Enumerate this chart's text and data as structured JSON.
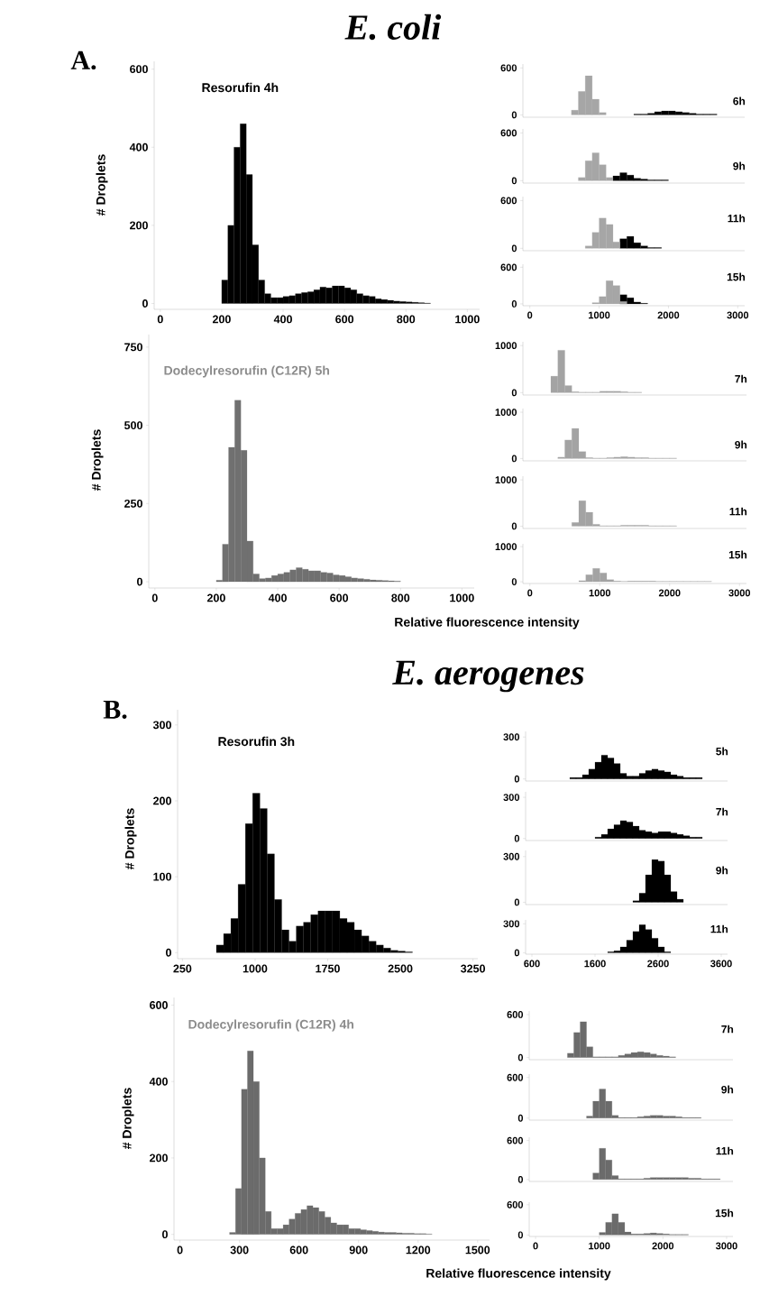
{
  "chart_data": [
    {
      "type": "histogram",
      "title": "E. coli",
      "annotations": [
        "A.",
        "Resorufin 4h"
      ],
      "ylabel": "# Droplets",
      "xlim": [
        -20,
        1040
      ],
      "ylim": [
        -15,
        620
      ],
      "xticks": [
        0,
        200,
        400,
        600,
        800,
        1000
      ],
      "yticks": [
        0,
        200,
        400,
        600
      ],
      "bins": [
        200,
        220,
        240,
        260,
        280,
        300,
        320,
        340,
        360,
        380,
        400,
        420,
        440,
        460,
        480,
        500,
        520,
        540,
        560,
        580,
        600,
        620,
        640,
        660,
        680,
        700,
        720,
        740,
        760,
        780,
        800,
        820,
        840,
        860,
        880
      ],
      "series": [
        {
          "color": "#000000",
          "values": [
            60,
            200,
            400,
            460,
            330,
            150,
            60,
            25,
            15,
            15,
            18,
            20,
            25,
            28,
            30,
            35,
            42,
            40,
            45,
            45,
            40,
            35,
            25,
            20,
            18,
            12,
            10,
            8,
            6,
            5,
            4,
            3,
            2,
            1
          ]
        }
      ]
    },
    {
      "type": "histogram",
      "title": "6h",
      "xlim": [
        -100,
        3100
      ],
      "ylim": [
        -30,
        650
      ],
      "yticks": [
        0,
        600
      ],
      "tick_labels": "y",
      "bins": [
        600,
        700,
        800,
        900,
        1000,
        1100,
        1200,
        1300,
        1400,
        1500,
        1600,
        1700,
        1800,
        1900,
        2000,
        2100,
        2200,
        2300,
        2400,
        2500,
        2600,
        2700
      ],
      "series": [
        {
          "color": "#000000",
          "values": [
            null,
            null,
            null,
            null,
            null,
            null,
            null,
            null,
            null,
            10,
            10,
            20,
            40,
            50,
            50,
            40,
            30,
            20,
            10,
            10,
            10
          ]
        },
        {
          "color": "#a6a6a6",
          "values": [
            60,
            300,
            500,
            200,
            30,
            null,
            null,
            null,
            null,
            null,
            null,
            null,
            null,
            null,
            null,
            null,
            null,
            null,
            null,
            null,
            null
          ]
        }
      ]
    },
    {
      "type": "histogram",
      "title": "9h",
      "xlim": [
        -100,
        3100
      ],
      "ylim": [
        -30,
        650
      ],
      "yticks": [
        0,
        600
      ],
      "tick_labels": "y",
      "bins": [
        600,
        700,
        800,
        900,
        1000,
        1100,
        1200,
        1300,
        1400,
        1500,
        1600,
        1700,
        1800,
        1900,
        2000,
        2100,
        2200,
        2300,
        2400,
        2500,
        2600,
        2700
      ],
      "series": [
        {
          "color": "#000000",
          "values": [
            null,
            null,
            null,
            null,
            null,
            null,
            60,
            100,
            70,
            30,
            20,
            10,
            10,
            10,
            null,
            null,
            null,
            null,
            null,
            null,
            null
          ]
        },
        {
          "color": "#a6a6a6",
          "values": [
            null,
            40,
            250,
            350,
            200,
            40,
            null,
            null,
            null,
            null,
            null,
            null,
            null,
            null,
            null,
            null,
            null,
            null,
            null,
            null,
            null
          ]
        }
      ]
    },
    {
      "type": "histogram",
      "title": "11h",
      "xlim": [
        -100,
        3100
      ],
      "ylim": [
        -30,
        650
      ],
      "yticks": [
        0,
        600
      ],
      "tick_labels": "y",
      "bins": [
        600,
        700,
        800,
        900,
        1000,
        1100,
        1200,
        1300,
        1400,
        1500,
        1600,
        1700,
        1800,
        1900,
        2000,
        2100,
        2200,
        2300,
        2400,
        2500,
        2600,
        2700
      ],
      "series": [
        {
          "color": "#000000",
          "values": [
            null,
            null,
            null,
            null,
            null,
            null,
            null,
            120,
            150,
            70,
            30,
            10,
            10,
            null,
            null,
            null,
            null,
            null,
            null,
            null,
            null
          ]
        },
        {
          "color": "#a6a6a6",
          "values": [
            null,
            null,
            30,
            200,
            380,
            300,
            80,
            null,
            null,
            null,
            null,
            null,
            null,
            null,
            null,
            null,
            null,
            null,
            null,
            null,
            null
          ]
        }
      ]
    },
    {
      "type": "histogram",
      "title": "15h",
      "xlim": [
        -100,
        3100
      ],
      "ylim": [
        -30,
        650
      ],
      "xticks": [
        0,
        1000,
        2000,
        3000
      ],
      "yticks": [
        0,
        600
      ],
      "bins": [
        600,
        700,
        800,
        900,
        1000,
        1100,
        1200,
        1300,
        1400,
        1500,
        1600,
        1700,
        1800,
        1900,
        2000,
        2100,
        2200,
        2300,
        2400,
        2500,
        2600,
        2700
      ],
      "series": [
        {
          "color": "#000000",
          "values": [
            null,
            null,
            null,
            null,
            null,
            null,
            null,
            150,
            100,
            30,
            10,
            null,
            null,
            null,
            null,
            null,
            null,
            null,
            null,
            null,
            null
          ]
        },
        {
          "color": "#a6a6a6",
          "values": [
            null,
            null,
            null,
            20,
            120,
            380,
            300,
            40,
            null,
            null,
            null,
            null,
            null,
            null,
            null,
            null,
            null,
            null,
            null,
            null,
            null
          ]
        }
      ]
    },
    {
      "type": "histogram",
      "annotations": [
        "Dodecylresorufin (C12R) 5h"
      ],
      "xlabel": "Relative fluorescence intensity",
      "ylabel": "# Droplets",
      "xlim": [
        -20,
        1040
      ],
      "ylim": [
        -20,
        790
      ],
      "xticks": [
        0,
        200,
        400,
        600,
        800,
        1000
      ],
      "yticks": [
        0,
        250,
        500,
        750
      ],
      "bins": [
        200,
        220,
        240,
        260,
        280,
        300,
        320,
        340,
        360,
        380,
        400,
        420,
        440,
        460,
        480,
        500,
        520,
        540,
        560,
        580,
        600,
        620,
        640,
        660,
        680,
        700,
        720,
        740,
        760,
        780,
        800
      ],
      "series": [
        {
          "color": "#707070",
          "values": [
            5,
            120,
            430,
            580,
            420,
            130,
            25,
            10,
            12,
            20,
            25,
            30,
            38,
            45,
            40,
            35,
            35,
            30,
            28,
            22,
            20,
            16,
            12,
            10,
            8,
            6,
            5,
            4,
            3,
            2
          ]
        }
      ]
    },
    {
      "type": "histogram",
      "title": "7h",
      "xlim": [
        -100,
        3100
      ],
      "ylim": [
        -50,
        1080
      ],
      "yticks": [
        0,
        1000
      ],
      "tick_labels": "y",
      "bins": [
        300,
        400,
        500,
        600,
        700,
        800,
        900,
        1000,
        1100,
        1200,
        1300,
        1400,
        1500,
        1600
      ],
      "series": [
        {
          "color": "#a3a3a3",
          "values": [
            350,
            900,
            150,
            20,
            10,
            10,
            10,
            30,
            30,
            30,
            20,
            10,
            10
          ]
        }
      ]
    },
    {
      "type": "histogram",
      "title": "9h",
      "xlim": [
        -100,
        3100
      ],
      "ylim": [
        -50,
        1080
      ],
      "yticks": [
        0,
        1000
      ],
      "tick_labels": "y",
      "bins": [
        400,
        500,
        600,
        700,
        800,
        900,
        1000,
        1100,
        1200,
        1300,
        1400,
        1500,
        1600,
        1700,
        1800,
        1900,
        2000,
        2100
      ],
      "series": [
        {
          "color": "#a3a3a3",
          "values": [
            30,
            400,
            650,
            150,
            20,
            10,
            10,
            20,
            30,
            40,
            30,
            20,
            20,
            10,
            10,
            10,
            10
          ]
        }
      ]
    },
    {
      "type": "histogram",
      "title": "11h",
      "xlim": [
        -100,
        3100
      ],
      "ylim": [
        -50,
        1080
      ],
      "yticks": [
        0,
        1000
      ],
      "tick_labels": "y",
      "bins": [
        600,
        700,
        800,
        900,
        1000,
        1100,
        1200,
        1300,
        1400,
        1500,
        1600,
        1700,
        1800,
        1900,
        2000,
        2100
      ],
      "series": [
        {
          "color": "#a3a3a3",
          "values": [
            80,
            550,
            300,
            40,
            10,
            10,
            10,
            20,
            20,
            20,
            20,
            10,
            10,
            10,
            10
          ]
        }
      ]
    },
    {
      "type": "histogram",
      "title": "15h",
      "xlim": [
        -100,
        3100
      ],
      "ylim": [
        -50,
        1080
      ],
      "xticks": [
        0,
        1000,
        2000,
        3000
      ],
      "yticks": [
        0,
        1000
      ],
      "bins": [
        700,
        800,
        900,
        1000,
        1100,
        1200,
        1300,
        1400,
        1500,
        1600,
        1700,
        1800,
        1900,
        2000,
        2100,
        2200,
        2300,
        2400,
        2500,
        2600
      ],
      "series": [
        {
          "color": "#a3a3a3",
          "values": [
            30,
            200,
            380,
            250,
            60,
            20,
            10,
            20,
            20,
            20,
            20,
            10,
            10,
            10,
            10,
            10,
            10,
            10,
            10
          ]
        }
      ]
    },
    {
      "type": "histogram",
      "title": "E. aerogenes",
      "annotations": [
        "B.",
        "Resorufin 3h"
      ],
      "ylabel": "# Droplets",
      "xlim": [
        200,
        3300
      ],
      "ylim": [
        -8,
        320
      ],
      "xticks": [
        250,
        1000,
        1750,
        2500,
        3250
      ],
      "yticks": [
        0,
        100,
        200,
        300
      ],
      "bins": [
        600,
        675,
        750,
        825,
        900,
        975,
        1050,
        1125,
        1200,
        1275,
        1350,
        1425,
        1500,
        1575,
        1650,
        1725,
        1800,
        1875,
        1950,
        2025,
        2100,
        2175,
        2250,
        2325,
        2400,
        2475,
        2550,
        2625
      ],
      "series": [
        {
          "color": "#000000",
          "values": [
            10,
            25,
            45,
            90,
            170,
            210,
            190,
            130,
            70,
            30,
            15,
            35,
            40,
            50,
            55,
            55,
            55,
            45,
            40,
            30,
            22,
            15,
            10,
            6,
            3,
            2,
            1
          ]
        }
      ]
    },
    {
      "type": "histogram",
      "title": "5h",
      "xlim": [
        500,
        3700
      ],
      "ylim": [
        -15,
        340
      ],
      "yticks": [
        0,
        300
      ],
      "tick_labels": "y",
      "bins": [
        1200,
        1300,
        1400,
        1500,
        1600,
        1700,
        1800,
        1900,
        2000,
        2100,
        2200,
        2300,
        2400,
        2500,
        2600,
        2700,
        2800,
        2900,
        3000,
        3100,
        3200,
        3300
      ],
      "series": [
        {
          "color": "#000000",
          "values": [
            10,
            10,
            30,
            70,
            120,
            170,
            150,
            110,
            40,
            20,
            20,
            40,
            60,
            70,
            60,
            50,
            30,
            20,
            10,
            10,
            10
          ]
        }
      ]
    },
    {
      "type": "histogram",
      "title": "7h",
      "xlim": [
        500,
        3700
      ],
      "ylim": [
        -15,
        340
      ],
      "yticks": [
        0,
        300
      ],
      "tick_labels": "y",
      "bins": [
        1600,
        1700,
        1800,
        1900,
        2000,
        2100,
        2200,
        2300,
        2400,
        2500,
        2600,
        2700,
        2800,
        2900,
        3000,
        3100,
        3200,
        3300
      ],
      "series": [
        {
          "color": "#000000",
          "values": [
            10,
            30,
            70,
            100,
            130,
            120,
            90,
            60,
            50,
            40,
            50,
            50,
            40,
            30,
            20,
            10,
            10
          ]
        }
      ]
    },
    {
      "type": "histogram",
      "title": "9h",
      "xlim": [
        500,
        3700
      ],
      "ylim": [
        -15,
        340
      ],
      "yticks": [
        0,
        300
      ],
      "tick_labels": "y",
      "bins": [
        2200,
        2300,
        2400,
        2500,
        2600,
        2700,
        2800,
        2900,
        3000
      ],
      "series": [
        {
          "color": "#000000",
          "values": [
            10,
            60,
            180,
            280,
            270,
            180,
            70,
            20
          ]
        }
      ]
    },
    {
      "type": "histogram",
      "title": "11h",
      "xlim": [
        500,
        3700
      ],
      "ylim": [
        -15,
        340
      ],
      "xticks": [
        600,
        1600,
        2600,
        3600
      ],
      "yticks": [
        0,
        300
      ],
      "bins": [
        1800,
        1900,
        2000,
        2100,
        2200,
        2300,
        2400,
        2500,
        2600,
        2700,
        2800
      ],
      "series": [
        {
          "color": "#000000",
          "values": [
            10,
            20,
            60,
            130,
            220,
            290,
            240,
            150,
            60,
            10
          ]
        }
      ]
    },
    {
      "type": "histogram",
      "annotations": [
        "Dodecylresorufin (C12R) 4h"
      ],
      "xlabel": "Relative fluorescence intensity",
      "ylabel": "# Droplets",
      "xlim": [
        -30,
        1560
      ],
      "ylim": [
        -15,
        620
      ],
      "xticks": [
        0,
        300,
        600,
        900,
        1200,
        1500
      ],
      "yticks": [
        0,
        200,
        400,
        600
      ],
      "bins": [
        250,
        280,
        310,
        340,
        370,
        400,
        430,
        460,
        490,
        520,
        550,
        580,
        610,
        640,
        670,
        700,
        730,
        760,
        790,
        820,
        850,
        880,
        910,
        940,
        970,
        1000,
        1030,
        1060,
        1090,
        1120,
        1150,
        1180,
        1210,
        1240,
        1270
      ],
      "series": [
        {
          "color": "#6b6b6b",
          "values": [
            5,
            120,
            380,
            480,
            400,
            200,
            60,
            15,
            15,
            25,
            40,
            55,
            65,
            75,
            70,
            60,
            45,
            30,
            25,
            25,
            15,
            15,
            12,
            10,
            8,
            6,
            5,
            5,
            4,
            3,
            3,
            2,
            2,
            1
          ]
        }
      ]
    },
    {
      "type": "histogram",
      "title": "7h",
      "xlim": [
        -100,
        3100
      ],
      "ylim": [
        -30,
        650
      ],
      "yticks": [
        0,
        600
      ],
      "tick_labels": "y",
      "bins": [
        500,
        600,
        700,
        800,
        900,
        1000,
        1100,
        1200,
        1300,
        1400,
        1500,
        1600,
        1700,
        1800,
        1900,
        2000,
        2100,
        2200
      ],
      "series": [
        {
          "color": "#6b6b6b",
          "values": [
            60,
            350,
            500,
            150,
            10,
            10,
            10,
            10,
            30,
            50,
            70,
            80,
            70,
            50,
            30,
            20,
            10
          ]
        }
      ]
    },
    {
      "type": "histogram",
      "title": "9h",
      "xlim": [
        -100,
        3100
      ],
      "ylim": [
        -30,
        650
      ],
      "yticks": [
        0,
        600
      ],
      "tick_labels": "y",
      "bins": [
        800,
        900,
        1000,
        1100,
        1200,
        1300,
        1400,
        1500,
        1600,
        1700,
        1800,
        1900,
        2000,
        2100,
        2200,
        2300,
        2400,
        2500,
        2600
      ],
      "series": [
        {
          "color": "#6b6b6b",
          "values": [
            30,
            250,
            430,
            250,
            40,
            10,
            10,
            10,
            20,
            30,
            40,
            40,
            30,
            30,
            20,
            10,
            10,
            10
          ]
        }
      ]
    },
    {
      "type": "histogram",
      "title": "11h",
      "xlim": [
        -100,
        3100
      ],
      "ylim": [
        -30,
        650
      ],
      "yticks": [
        0,
        600
      ],
      "tick_labels": "y",
      "bins": [
        900,
        1000,
        1100,
        1200,
        1300,
        1400,
        1500,
        1600,
        1700,
        1800,
        1900,
        2000,
        2100,
        2200,
        2300,
        2400,
        2500,
        2600,
        2700,
        2800,
        2900
      ],
      "series": [
        {
          "color": "#6b6b6b",
          "values": [
            100,
            480,
            300,
            60,
            10,
            10,
            10,
            10,
            20,
            30,
            30,
            30,
            30,
            30,
            30,
            20,
            20,
            10,
            10,
            10
          ]
        }
      ]
    },
    {
      "type": "histogram",
      "title": "15h",
      "xlim": [
        -100,
        3100
      ],
      "ylim": [
        -30,
        650
      ],
      "xticks": [
        0,
        1000,
        2000,
        3000
      ],
      "yticks": [
        0,
        600
      ],
      "bins": [
        1000,
        1100,
        1200,
        1300,
        1400,
        1500,
        1600,
        1700,
        1800,
        1900,
        2000,
        2100,
        2200,
        2300,
        2400
      ],
      "series": [
        {
          "color": "#6b6b6b",
          "values": [
            50,
            250,
            420,
            250,
            60,
            20,
            20,
            30,
            40,
            30,
            20,
            10,
            10,
            10
          ]
        }
      ]
    }
  ]
}
